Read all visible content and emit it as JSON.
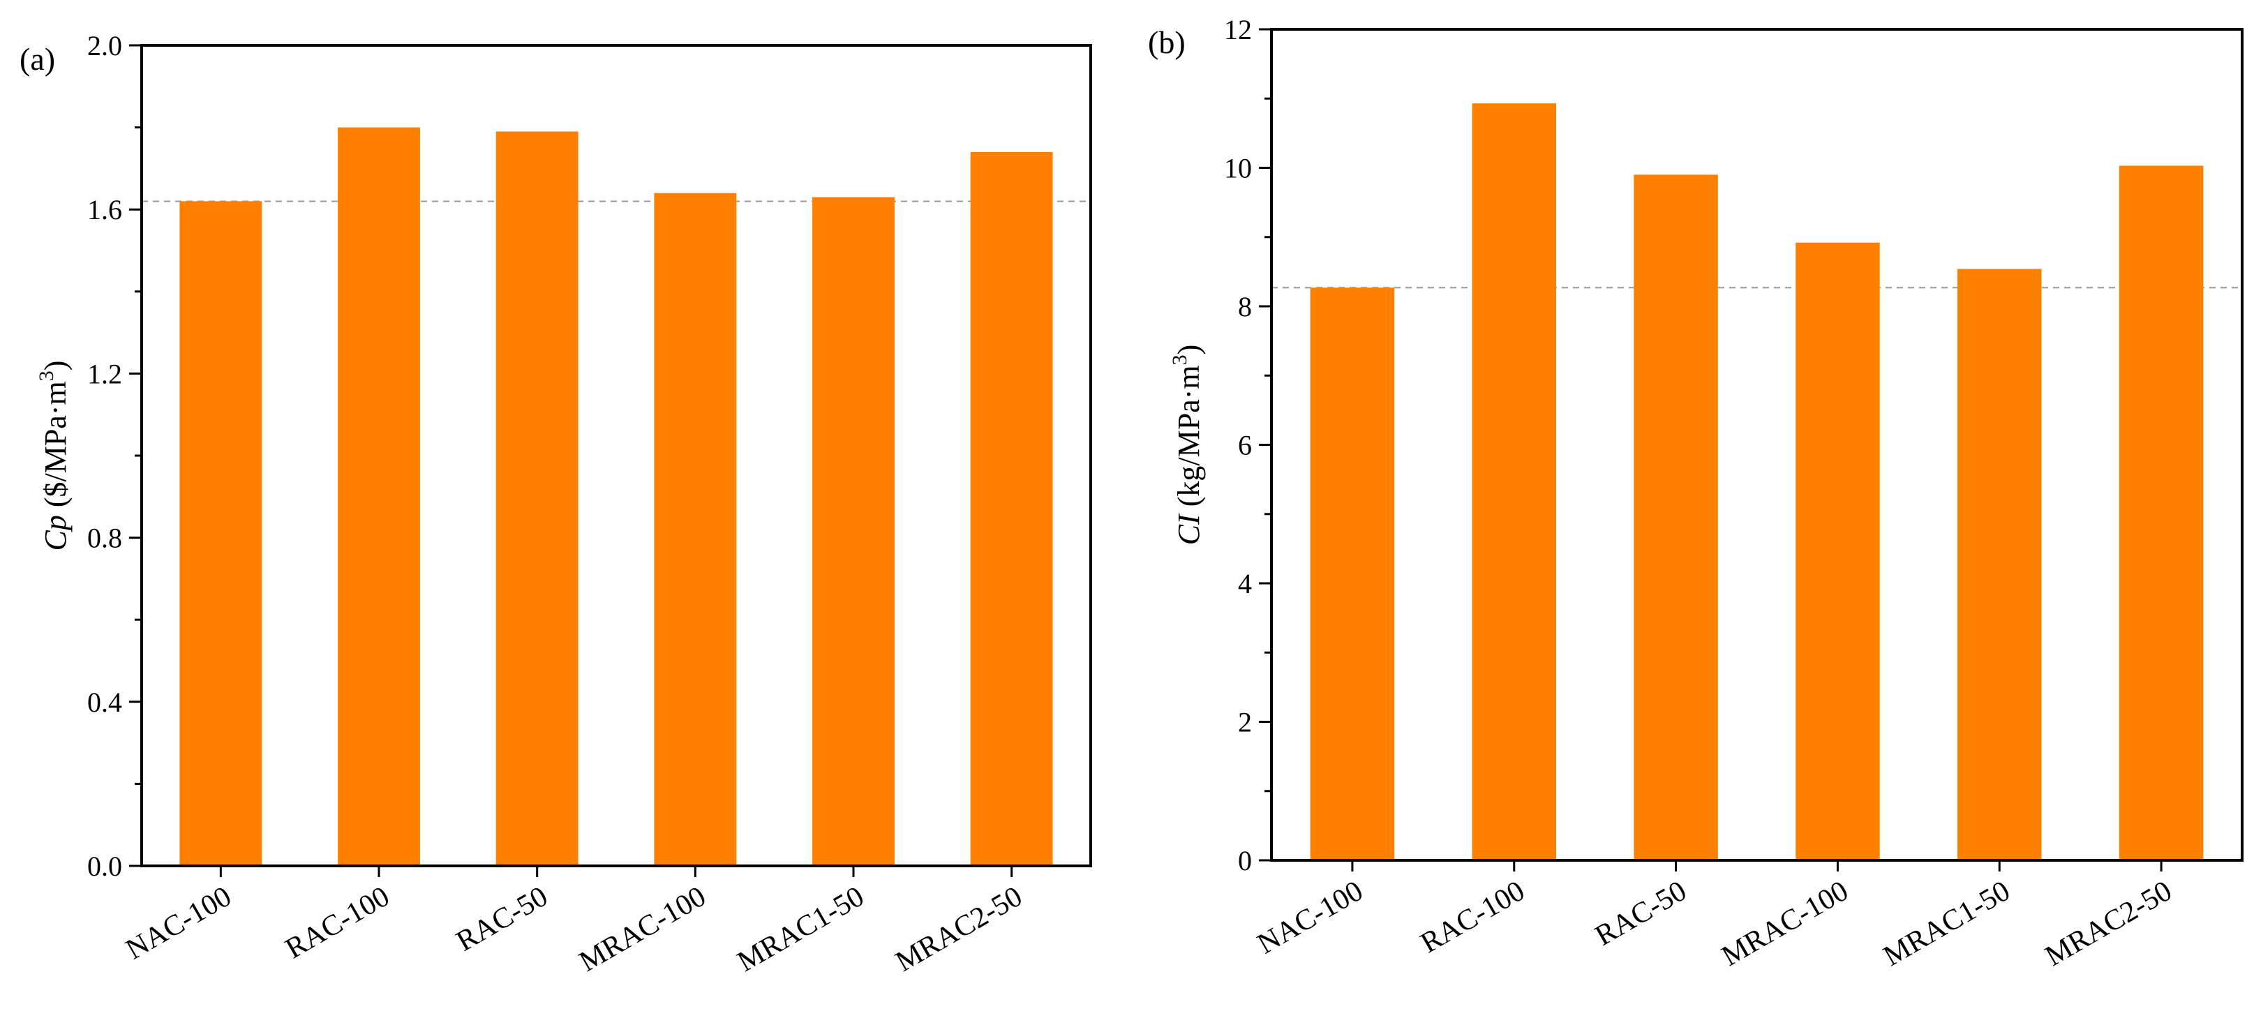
{
  "chart_data": [
    {
      "panel": "(a)",
      "type": "bar",
      "categories": [
        "NAC-100",
        "RAC-100",
        "RAC-50",
        "MRAC-100",
        "MRAC1-50",
        "MRAC2-50"
      ],
      "values": [
        1.62,
        1.8,
        1.79,
        1.64,
        1.63,
        1.74
      ],
      "ylabel": {
        "var": "Cp",
        "units": "($/MPa·m",
        "sup": "3",
        "close": ")"
      },
      "ylim": [
        0,
        2.0
      ],
      "major_ticks": [
        0,
        0.4,
        0.8,
        1.2,
        1.6,
        2.0
      ],
      "tick_labels": [
        "0.0",
        "0.4",
        "0.8",
        "1.2",
        "1.6",
        "2.0"
      ],
      "reference_line": 1.62,
      "bar_color": "#FF8000",
      "reference_color": "#999999"
    },
    {
      "panel": "(b)",
      "type": "bar",
      "categories": [
        "NAC-100",
        "RAC-100",
        "RAC-50",
        "MRAC-100",
        "MRAC1-50",
        "MRAC2-50"
      ],
      "values": [
        8.27,
        10.93,
        9.9,
        8.92,
        8.54,
        10.03
      ],
      "ylabel": {
        "var": "CI",
        "units": "(kg/MPa·m",
        "sup": "3",
        "close": ")"
      },
      "ylim": [
        0,
        12
      ],
      "major_ticks": [
        0,
        2,
        4,
        6,
        8,
        10,
        12
      ],
      "tick_labels": [
        "0",
        "2",
        "4",
        "6",
        "8",
        "10",
        "12"
      ],
      "reference_line": 8.27,
      "bar_color": "#FF8000",
      "reference_color": "#999999"
    }
  ]
}
